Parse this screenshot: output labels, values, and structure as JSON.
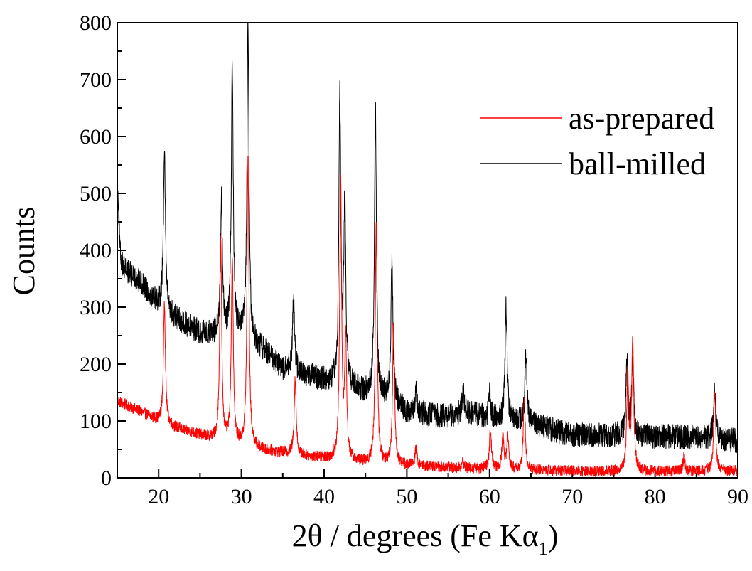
{
  "chart_data": {
    "type": "line",
    "title": "",
    "xlabel_prefix": "2θ / degrees (Fe Kα",
    "xlabel_subscript": "1",
    "xlabel_suffix": ")",
    "ylabel": "Counts",
    "xlim": [
      15,
      90
    ],
    "ylim": [
      0,
      800
    ],
    "xticks": [
      20,
      30,
      40,
      50,
      60,
      70,
      80,
      90
    ],
    "yticks": [
      0,
      100,
      200,
      300,
      400,
      500,
      600,
      700,
      800
    ],
    "grid": false,
    "legend_position": "top-right",
    "series": [
      {
        "name": "as-prepared",
        "color": "#ff0000",
        "baseline": [
          [
            15,
            135
          ],
          [
            18,
            115
          ],
          [
            20,
            100
          ],
          [
            22,
            88
          ],
          [
            25,
            75
          ],
          [
            28,
            62
          ],
          [
            30,
            55
          ],
          [
            33,
            48
          ],
          [
            36,
            42
          ],
          [
            40,
            34
          ],
          [
            45,
            26
          ],
          [
            50,
            22
          ],
          [
            55,
            18
          ],
          [
            60,
            16
          ],
          [
            65,
            14
          ],
          [
            70,
            12
          ],
          [
            75,
            11
          ],
          [
            80,
            11
          ],
          [
            85,
            12
          ],
          [
            90,
            12
          ]
        ],
        "noise_amplitude": 10,
        "peaks": [
          [
            20.7,
            310
          ],
          [
            27.5,
            420
          ],
          [
            28.9,
            390
          ],
          [
            30.8,
            560
          ],
          [
            36.5,
            175
          ],
          [
            42.0,
            520
          ],
          [
            42.6,
            240
          ],
          [
            46.3,
            450
          ],
          [
            48.4,
            275
          ],
          [
            51.1,
            50
          ],
          [
            56.8,
            28
          ],
          [
            60.1,
            85
          ],
          [
            61.6,
            75
          ],
          [
            62.2,
            70
          ],
          [
            64.2,
            140
          ],
          [
            76.7,
            180
          ],
          [
            77.3,
            245
          ],
          [
            83.5,
            38
          ],
          [
            87.2,
            155
          ]
        ]
      },
      {
        "name": "ball-milled",
        "color": "#000000",
        "baseline": [
          [
            15,
            370
          ],
          [
            16,
            365
          ],
          [
            18,
            340
          ],
          [
            20,
            305
          ],
          [
            22,
            280
          ],
          [
            25,
            255
          ],
          [
            27,
            250
          ],
          [
            30,
            250
          ],
          [
            33,
            220
          ],
          [
            35,
            190
          ],
          [
            38,
            180
          ],
          [
            40,
            172
          ],
          [
            43,
            160
          ],
          [
            45,
            148
          ],
          [
            48,
            140
          ],
          [
            50,
            115
          ],
          [
            55,
            108
          ],
          [
            57,
            115
          ],
          [
            60,
            105
          ],
          [
            65,
            95
          ],
          [
            70,
            75
          ],
          [
            75,
            75
          ],
          [
            80,
            72
          ],
          [
            85,
            72
          ],
          [
            90,
            65
          ]
        ],
        "noise_amplitude": 22,
        "peaks": [
          [
            15.1,
            500
          ],
          [
            20.7,
            585
          ],
          [
            27.6,
            490
          ],
          [
            28.9,
            722
          ],
          [
            30.8,
            800
          ],
          [
            36.3,
            320
          ],
          [
            41.9,
            660
          ],
          [
            42.5,
            480
          ],
          [
            46.2,
            652
          ],
          [
            48.2,
            380
          ],
          [
            51.1,
            150
          ],
          [
            56.8,
            160
          ],
          [
            60.0,
            150
          ],
          [
            62.0,
            302
          ],
          [
            64.4,
            220
          ],
          [
            76.6,
            200
          ],
          [
            77.3,
            215
          ],
          [
            87.2,
            162
          ]
        ]
      }
    ]
  }
}
